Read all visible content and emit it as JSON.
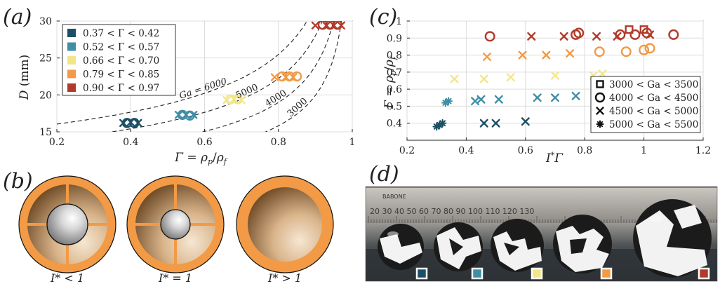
{
  "colors": {
    "g1": "#1c4f66",
    "g2": "#3f8ea6",
    "g3": "#f3e68a",
    "g4": "#f29a45",
    "g5": "#b23a2a",
    "shell": "#f29a45"
  },
  "panel_letters": {
    "a": "(a)",
    "b": "(b)",
    "c": "(c)",
    "d": "(d)"
  },
  "chart_data": [
    {
      "type": "scatter",
      "panel": "(a)",
      "xlabel": "Γ = ρp/ρf",
      "ylabel": "D (mm)",
      "xlim": [
        0.2,
        1.0
      ],
      "ylim": [
        15,
        30
      ],
      "xticks": [
        "0.2",
        "0.4",
        "0.6",
        "0.8",
        "1"
      ],
      "yticks": [
        "15",
        "20",
        "25",
        "30"
      ],
      "grid": true,
      "legend_placement": "top-left",
      "series": [
        {
          "name": "0.37 < Γ < 0.42",
          "color": "#1c4f66",
          "x": [
            0.38,
            0.39,
            0.4,
            0.41,
            0.42
          ],
          "y": [
            16.2,
            16.2,
            16.3,
            16.2,
            16.2
          ]
        },
        {
          "name": "0.52 < Γ < 0.57",
          "color": "#3f8ea6",
          "x": [
            0.53,
            0.54,
            0.55,
            0.56,
            0.57
          ],
          "y": [
            17.3,
            17.3,
            17.3,
            17.2,
            17.3
          ]
        },
        {
          "name": "0.66 < Γ < 0.70",
          "color": "#f3e68a",
          "x": [
            0.66,
            0.67,
            0.68,
            0.69,
            0.7
          ],
          "y": [
            19.3,
            19.4,
            19.4,
            19.4,
            19.3
          ]
        },
        {
          "name": "0.79 < Γ < 0.85",
          "color": "#f29a45",
          "x": [
            0.79,
            0.81,
            0.82,
            0.83,
            0.84,
            0.85
          ],
          "y": [
            22.4,
            22.5,
            22.4,
            22.5,
            22.4,
            22.5
          ]
        },
        {
          "name": "0.90 < Γ < 0.97",
          "color": "#b23a2a",
          "x": [
            0.9,
            0.92,
            0.93,
            0.94,
            0.95,
            0.96,
            0.97
          ],
          "y": [
            29.4,
            29.5,
            29.4,
            29.5,
            29.4,
            29.5,
            29.4
          ]
        }
      ],
      "ga_curves": [
        {
          "label": "Ga = 6000",
          "k": 6000
        },
        {
          "label": "5000",
          "k": 5000
        },
        {
          "label": "4000",
          "k": 4000
        },
        {
          "label": "3000",
          "k": 3000
        }
      ]
    },
    {
      "type": "scatter",
      "panel": "(c)",
      "xlabel": "I*Γ",
      "ylabel": "Γ = ρp/ρf",
      "xlim": [
        0.2,
        1.2
      ],
      "ylim": [
        0.3,
        1.0
      ],
      "xticks": [
        "0.2",
        "0.4",
        "0.6",
        "0.8",
        "1",
        "1.2"
      ],
      "yticks": [
        "0.4",
        "0.5",
        "0.6",
        "0.7",
        "0.8",
        "0.9",
        "1"
      ],
      "grid": true,
      "legend_placement": "bottom-right",
      "legend": [
        {
          "marker": "square",
          "label": "3000 < Ga < 3500"
        },
        {
          "marker": "circle",
          "label": "4000 < Ga < 4500"
        },
        {
          "marker": "x",
          "label": "4500 < Ga < 5000"
        },
        {
          "marker": "asterisk",
          "label": "5000 < Ga < 5500"
        }
      ],
      "points": [
        {
          "x": 0.3,
          "y": 0.38,
          "m": "asterisk",
          "c": "#1c4f66"
        },
        {
          "x": 0.31,
          "y": 0.39,
          "m": "asterisk",
          "c": "#1c4f66"
        },
        {
          "x": 0.32,
          "y": 0.4,
          "m": "asterisk",
          "c": "#1c4f66"
        },
        {
          "x": 0.46,
          "y": 0.4,
          "m": "x",
          "c": "#1c4f66"
        },
        {
          "x": 0.5,
          "y": 0.4,
          "m": "x",
          "c": "#1c4f66"
        },
        {
          "x": 0.6,
          "y": 0.41,
          "m": "x",
          "c": "#1c4f66"
        },
        {
          "x": 0.33,
          "y": 0.52,
          "m": "asterisk",
          "c": "#3f8ea6"
        },
        {
          "x": 0.34,
          "y": 0.53,
          "m": "asterisk",
          "c": "#3f8ea6"
        },
        {
          "x": 0.43,
          "y": 0.53,
          "m": "x",
          "c": "#3f8ea6"
        },
        {
          "x": 0.45,
          "y": 0.54,
          "m": "x",
          "c": "#3f8ea6"
        },
        {
          "x": 0.51,
          "y": 0.54,
          "m": "x",
          "c": "#3f8ea6"
        },
        {
          "x": 0.64,
          "y": 0.55,
          "m": "x",
          "c": "#3f8ea6"
        },
        {
          "x": 0.7,
          "y": 0.55,
          "m": "x",
          "c": "#3f8ea6"
        },
        {
          "x": 0.77,
          "y": 0.56,
          "m": "x",
          "c": "#3f8ea6"
        },
        {
          "x": 0.36,
          "y": 0.66,
          "m": "x",
          "c": "#f3e68a"
        },
        {
          "x": 0.46,
          "y": 0.66,
          "m": "x",
          "c": "#f3e68a"
        },
        {
          "x": 0.55,
          "y": 0.67,
          "m": "x",
          "c": "#f3e68a"
        },
        {
          "x": 0.7,
          "y": 0.68,
          "m": "x",
          "c": "#f3e68a"
        },
        {
          "x": 0.83,
          "y": 0.68,
          "m": "x",
          "c": "#f3e68a"
        },
        {
          "x": 0.86,
          "y": 0.69,
          "m": "x",
          "c": "#f3e68a"
        },
        {
          "x": 0.47,
          "y": 0.79,
          "m": "x",
          "c": "#f29a45"
        },
        {
          "x": 0.59,
          "y": 0.8,
          "m": "x",
          "c": "#f29a45"
        },
        {
          "x": 0.67,
          "y": 0.8,
          "m": "x",
          "c": "#f29a45"
        },
        {
          "x": 0.75,
          "y": 0.81,
          "m": "x",
          "c": "#f29a45"
        },
        {
          "x": 0.85,
          "y": 0.82,
          "m": "circle",
          "c": "#f29a45"
        },
        {
          "x": 0.94,
          "y": 0.82,
          "m": "circle",
          "c": "#f29a45"
        },
        {
          "x": 1.0,
          "y": 0.83,
          "m": "circle",
          "c": "#f29a45"
        },
        {
          "x": 1.02,
          "y": 0.84,
          "m": "circle",
          "c": "#f29a45"
        },
        {
          "x": 0.48,
          "y": 0.91,
          "m": "circle",
          "c": "#b23a2a"
        },
        {
          "x": 0.62,
          "y": 0.91,
          "m": "x",
          "c": "#b23a2a"
        },
        {
          "x": 0.73,
          "y": 0.91,
          "m": "x",
          "c": "#b23a2a"
        },
        {
          "x": 0.77,
          "y": 0.92,
          "m": "circle",
          "c": "#b23a2a"
        },
        {
          "x": 0.78,
          "y": 0.93,
          "m": "circle",
          "c": "#b23a2a"
        },
        {
          "x": 0.84,
          "y": 0.91,
          "m": "x",
          "c": "#b23a2a"
        },
        {
          "x": 0.91,
          "y": 0.91,
          "m": "x",
          "c": "#b23a2a"
        },
        {
          "x": 0.92,
          "y": 0.92,
          "m": "circle",
          "c": "#b23a2a"
        },
        {
          "x": 0.95,
          "y": 0.95,
          "m": "square",
          "c": "#b23a2a"
        },
        {
          "x": 0.97,
          "y": 0.92,
          "m": "circle",
          "c": "#b23a2a"
        },
        {
          "x": 1.0,
          "y": 0.95,
          "m": "square",
          "c": "#b23a2a"
        },
        {
          "x": 1.01,
          "y": 0.93,
          "m": "circle",
          "c": "#b23a2a"
        },
        {
          "x": 1.02,
          "y": 0.92,
          "m": "x",
          "c": "#b23a2a"
        },
        {
          "x": 1.1,
          "y": 0.92,
          "m": "circle",
          "c": "#b23a2a"
        }
      ]
    }
  ],
  "panel_b": {
    "captions": [
      "I* < 1",
      "I* = 1",
      "I* > 1"
    ]
  },
  "panel_d": {
    "ruler_text": "20   30   40   50   60   70   80   90   100   110   120   130",
    "ruler_brand": "BABONE",
    "swatch_colors": [
      "#1c4f66",
      "#3f8ea6",
      "#f3e68a",
      "#f29a45",
      "#b23a2a"
    ]
  }
}
